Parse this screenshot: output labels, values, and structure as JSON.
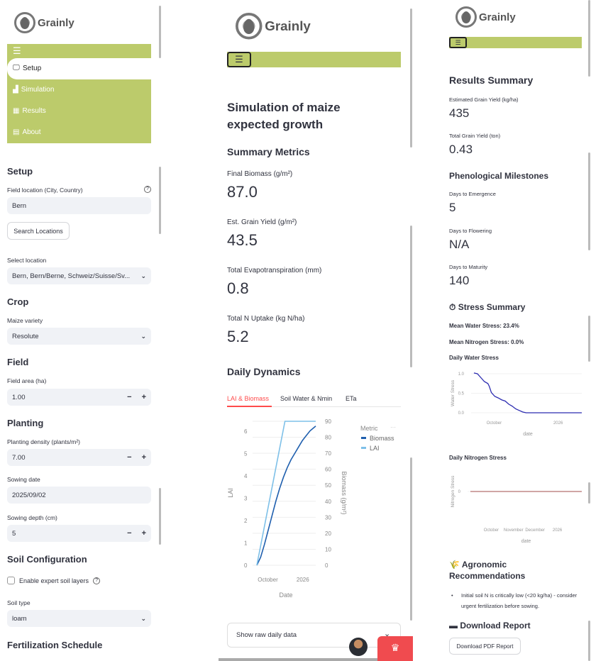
{
  "brand": {
    "name": "Grainly",
    "accent": "#bccb6b",
    "tab_accent": "#ff4b4b"
  },
  "sidebar": {
    "menu_icon": "hamburger-icon",
    "items": [
      {
        "label": "Setup",
        "icon": "monitor-icon"
      },
      {
        "label": "Simulation",
        "icon": "chart-icon"
      },
      {
        "label": "Results",
        "icon": "calculator-icon"
      },
      {
        "label": "About",
        "icon": "book-icon"
      }
    ]
  },
  "setup": {
    "title": "Setup",
    "location_label": "Field location (City, Country)",
    "location_value": "Bern",
    "search_button": "Search Locations",
    "select_location_label": "Select location",
    "select_location_value": "Bern, Bern/Berne, Schweiz/Suisse/Sv...",
    "crop_title": "Crop",
    "variety_label": "Maize variety",
    "variety_value": "Resolute",
    "field_title": "Field",
    "area_label": "Field area (ha)",
    "area_value": "1.00",
    "planting_title": "Planting",
    "density_label": "Planting density (plants/m²)",
    "density_value": "7.00",
    "sowing_date_label": "Sowing date",
    "sowing_date_value": "2025/09/02",
    "sowing_depth_label": "Sowing depth (cm)",
    "sowing_depth_value": "5",
    "soil_title": "Soil Configuration",
    "expert_layers_label": "Enable expert soil layers",
    "expert_layers_checked": false,
    "soil_type_label": "Soil type",
    "soil_type_value": "loam",
    "fert_title": "Fertilization Schedule",
    "minus": "−",
    "plus": "+"
  },
  "simulation": {
    "title_line1": "Simulation of maize",
    "title_line2": "expected growth",
    "summary_title": "Summary Metrics",
    "metrics": [
      {
        "label": "Final Biomass (g/m²)",
        "value": "87.0"
      },
      {
        "label": "Est. Grain Yield (g/m²)",
        "value": "43.5"
      },
      {
        "label": "Total Evapotranspiration (mm)",
        "value": "0.8"
      },
      {
        "label": "Total N Uptake (kg N/ha)",
        "value": "5.2"
      }
    ],
    "dynamics_title": "Daily Dynamics",
    "tabs": [
      "LAI & Biomass",
      "Soil Water & Nmin",
      "ETa"
    ],
    "active_tab": 0,
    "expander_label": "Show raw daily data",
    "more": "···"
  },
  "results": {
    "title": "Results Summary",
    "est_yield_label": "Estimated Grain Yield (kg/ha)",
    "est_yield_value": "435",
    "total_yield_label": "Total Grain Yield (ton)",
    "total_yield_value": "0.43",
    "pheno_title": "Phenological Milestones",
    "emergence_label": "Days to Emergence",
    "emergence_value": "5",
    "flowering_label": "Days to Flowering",
    "flowering_value": "N/A",
    "maturity_label": "Days to Maturity",
    "maturity_value": "140",
    "stress_title": "Stress Summary",
    "mean_water": "Mean Water Stress: 23.4%",
    "mean_nitrogen": "Mean Nitrogen Stress: 0.0%",
    "water_chart_title": "Daily Water Stress",
    "nitrogen_chart_title": "Daily Nitrogen Stress",
    "reco_title_line1": "Agronomic",
    "reco_title_line2": "Recommendations",
    "reco_items": [
      "Initial soil N is critically low (<20 kg/ha) - consider urgent fertilization before sowing."
    ],
    "download_title": "Download Report",
    "download_button": "Download PDF Report"
  },
  "chart_data": [
    {
      "type": "line",
      "title": "LAI & Biomass",
      "xlabel": "Date",
      "x_unit": "days after 2025-09-02",
      "x_ticks": [
        {
          "x": 29,
          "label": "October"
        },
        {
          "x": 121,
          "label": "2026"
        }
      ],
      "xlim": [
        0,
        155
      ],
      "ylabel": "LAI",
      "ylim": [
        0,
        6.45
      ],
      "y_ticks": [
        0,
        1,
        2,
        3,
        4,
        5,
        6
      ],
      "y2label": "Biomass (g/m²)",
      "y2lim": [
        0,
        90
      ],
      "y2_ticks": [
        0,
        10,
        20,
        30,
        40,
        50,
        60,
        70,
        80,
        90
      ],
      "legend_title": "Metric",
      "legend_position": "right",
      "series": [
        {
          "name": "Biomass",
          "axis": "y2",
          "color": "#1f5fae",
          "x": [
            0,
            10,
            20,
            30,
            40,
            50,
            60,
            70,
            80,
            90,
            100,
            110,
            120,
            130,
            140,
            155
          ],
          "values": [
            0,
            5,
            13,
            22,
            31,
            40,
            48,
            55,
            61,
            66,
            70,
            74,
            78,
            81,
            84,
            87
          ]
        },
        {
          "name": "LAI",
          "axis": "y",
          "color": "#7ec0e8",
          "x": [
            0,
            74,
            155
          ],
          "values": [
            0,
            6.45,
            6.45
          ]
        }
      ]
    },
    {
      "type": "line",
      "title": "Daily Water Stress",
      "xlabel": "date",
      "ylabel": "Water Stress",
      "x_ticks": [
        {
          "x": 29,
          "label": "October"
        },
        {
          "x": 121,
          "label": "2026"
        }
      ],
      "xlim": [
        0,
        155
      ],
      "ylim": [
        0,
        1
      ],
      "y_ticks": [
        {
          "v": 0,
          "label": "0.0"
        },
        {
          "v": 0.5,
          "label": "0.5"
        },
        {
          "v": 1,
          "label": "1.0"
        }
      ],
      "series": [
        {
          "name": "Water Stress",
          "color": "#2b2bb0",
          "x": [
            0,
            5,
            10,
            15,
            20,
            22,
            25,
            30,
            35,
            40,
            45,
            50,
            55,
            60,
            65,
            70,
            75,
            155
          ],
          "values": [
            1.02,
            1.0,
            0.9,
            0.8,
            0.75,
            0.68,
            0.52,
            0.42,
            0.38,
            0.33,
            0.3,
            0.22,
            0.17,
            0.1,
            0.06,
            0.02,
            0,
            0
          ]
        }
      ]
    },
    {
      "type": "line",
      "title": "Daily Nitrogen Stress",
      "xlabel": "date",
      "ylabel": "Nitrogen Stress",
      "x_ticks": [
        {
          "x": 29,
          "label": "October"
        },
        {
          "x": 60,
          "label": "November"
        },
        {
          "x": 90,
          "label": "December"
        },
        {
          "x": 121,
          "label": "2026"
        }
      ],
      "xlim": [
        0,
        155
      ],
      "ylim": [
        -1,
        1
      ],
      "y_ticks": [
        {
          "v": 0,
          "label": "0"
        }
      ],
      "series": [
        {
          "name": "Nitrogen Stress",
          "color": "#b5706f",
          "x": [
            0,
            155
          ],
          "values": [
            0,
            0
          ]
        }
      ]
    }
  ]
}
